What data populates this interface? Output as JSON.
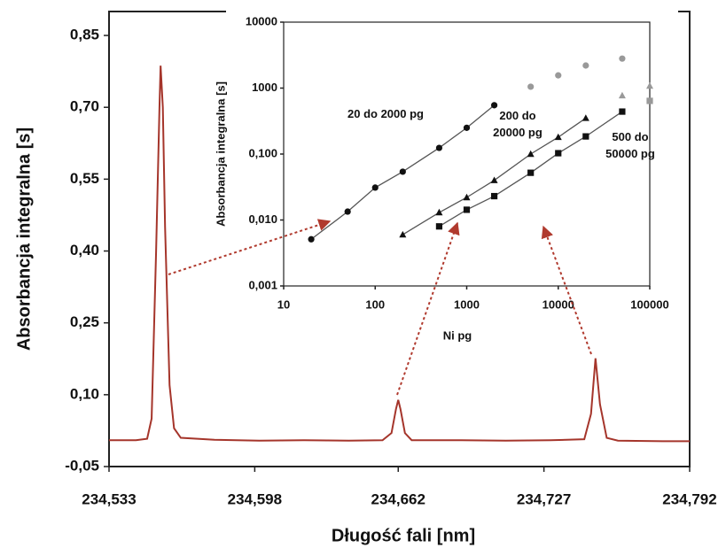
{
  "chart_data": [
    {
      "type": "line",
      "xlabel": "Długość fali [nm]",
      "ylabel": "Absorbancja integralna [s]",
      "xlim": [
        234.533,
        234.792
      ],
      "xticks": [
        {
          "value": 234.533,
          "label": "234,533"
        },
        {
          "value": 234.598,
          "label": "234,598"
        },
        {
          "value": 234.662,
          "label": "234,662"
        },
        {
          "value": 234.727,
          "label": "234,727"
        },
        {
          "value": 234.792,
          "label": "234,792"
        }
      ],
      "ylim": [
        -0.05,
        0.9
      ],
      "yticks": [
        {
          "value": -0.05,
          "label": "-0,05"
        },
        {
          "value": 0.1,
          "label": "0,10"
        },
        {
          "value": 0.25,
          "label": "0,25"
        },
        {
          "value": 0.4,
          "label": "0,40"
        },
        {
          "value": 0.55,
          "label": "0,55"
        },
        {
          "value": 0.7,
          "label": "0,70"
        },
        {
          "value": 0.85,
          "label": "0,85"
        }
      ],
      "x": [
        234.533,
        234.545,
        234.55,
        234.552,
        234.554,
        234.5555,
        234.556,
        234.557,
        234.558,
        234.56,
        234.562,
        234.565,
        234.58,
        234.6,
        234.62,
        234.64,
        234.655,
        234.659,
        234.661,
        234.662,
        234.663,
        234.665,
        234.668,
        234.69,
        234.71,
        234.73,
        234.745,
        234.748,
        234.75,
        234.752,
        234.755,
        234.76,
        234.78,
        234.792
      ],
      "series": [
        {
          "color": "#a5352b",
          "values": [
            0.005,
            0.005,
            0.008,
            0.05,
            0.4,
            0.7,
            0.787,
            0.7,
            0.45,
            0.12,
            0.03,
            0.01,
            0.006,
            0.004,
            0.005,
            0.004,
            0.005,
            0.02,
            0.07,
            0.089,
            0.07,
            0.02,
            0.005,
            0.005,
            0.004,
            0.005,
            0.007,
            0.06,
            0.176,
            0.08,
            0.01,
            0.004,
            0.003,
            0.003
          ]
        }
      ]
    },
    {
      "type": "scatter",
      "xlabel": "Ni pg",
      "ylabel": "Absorbancja integralna [s]",
      "xlog": true,
      "ylog": true,
      "xlim": [
        10,
        100000
      ],
      "xticks": [
        10,
        100,
        1000,
        10000,
        100000
      ],
      "ylim": [
        0.001,
        10
      ],
      "yticks": [
        {
          "value": 0.001,
          "label": "0,001"
        },
        {
          "value": 0.01,
          "label": "0,010"
        },
        {
          "value": 0.1,
          "label": "0,100"
        },
        {
          "value": 1,
          "label": "1000"
        },
        {
          "value": 10,
          "label": "10000"
        }
      ],
      "series": [
        {
          "name": "20 do 2000 pg",
          "marker": "circle",
          "color": "#111111",
          "fit": true,
          "x": [
            20,
            50,
            100,
            200,
            500,
            1000,
            2000
          ],
          "values": [
            0.0051,
            0.0134,
            0.031,
            0.054,
            0.124,
            0.25,
            0.55
          ]
        },
        {
          "name": "200 do 20000 pg",
          "marker": "triangle",
          "color": "#111111",
          "fit": true,
          "x": [
            200,
            500,
            1000,
            2000,
            5000,
            10000,
            20000
          ],
          "values": [
            0.006,
            0.013,
            0.022,
            0.04,
            0.1,
            0.18,
            0.35
          ]
        },
        {
          "name": "500 do 50000 pg",
          "marker": "square",
          "color": "#111111",
          "fit": true,
          "x": [
            500,
            1000,
            2000,
            5000,
            10000,
            20000,
            50000
          ],
          "values": [
            0.008,
            0.0143,
            0.023,
            0.052,
            0.103,
            0.185,
            0.44
          ]
        },
        {
          "marker": "circle",
          "color": "#999999",
          "x": [
            5000,
            10000,
            20000,
            50000
          ],
          "values": [
            1.05,
            1.56,
            2.2,
            2.8
          ]
        },
        {
          "marker": "triangle",
          "color": "#999999",
          "x": [
            50000,
            100000
          ],
          "values": [
            0.77,
            1.08
          ]
        },
        {
          "marker": "square",
          "color": "#999999",
          "x": [
            100000
          ],
          "values": [
            0.64
          ]
        }
      ]
    }
  ]
}
